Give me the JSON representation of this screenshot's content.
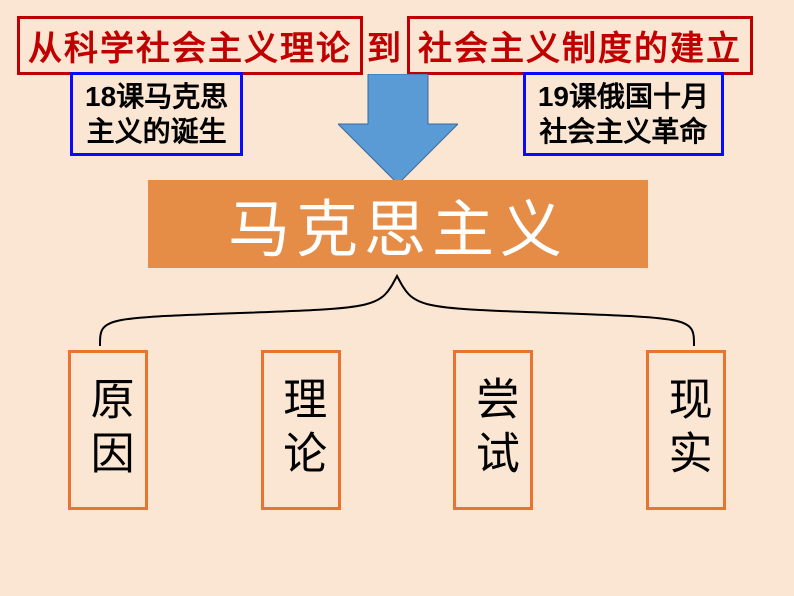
{
  "title": {
    "left_text": "从科学社会主义理论",
    "join_text": "到",
    "right_text": "社会主义制度的建立",
    "border_color": "#c00000",
    "text_color": "#c00000",
    "fontsize": 34
  },
  "subtitles": {
    "left": "18课马克思\n主义的诞生",
    "right": "19课俄国十月\n社会主义革命",
    "border_color": "#0a0aff",
    "fontsize": 28
  },
  "arrow": {
    "fill": "#5a9bd5",
    "stroke": "#3b6a9a",
    "stroke_width": 2
  },
  "main": {
    "text": "马克思主义",
    "bg_color": "#e58d46",
    "text_color": "#ffffff",
    "fontsize": 62
  },
  "brace": {
    "stroke": "#000000",
    "stroke_width": 2
  },
  "leaves": [
    {
      "label": "原因",
      "border_color": "#e97430"
    },
    {
      "label": "理论",
      "border_color": "#e97430"
    },
    {
      "label": "尝试",
      "border_color": "#e97430"
    },
    {
      "label": "现实",
      "border_color": "#e97430"
    }
  ],
  "background_color": "#fae6d2"
}
